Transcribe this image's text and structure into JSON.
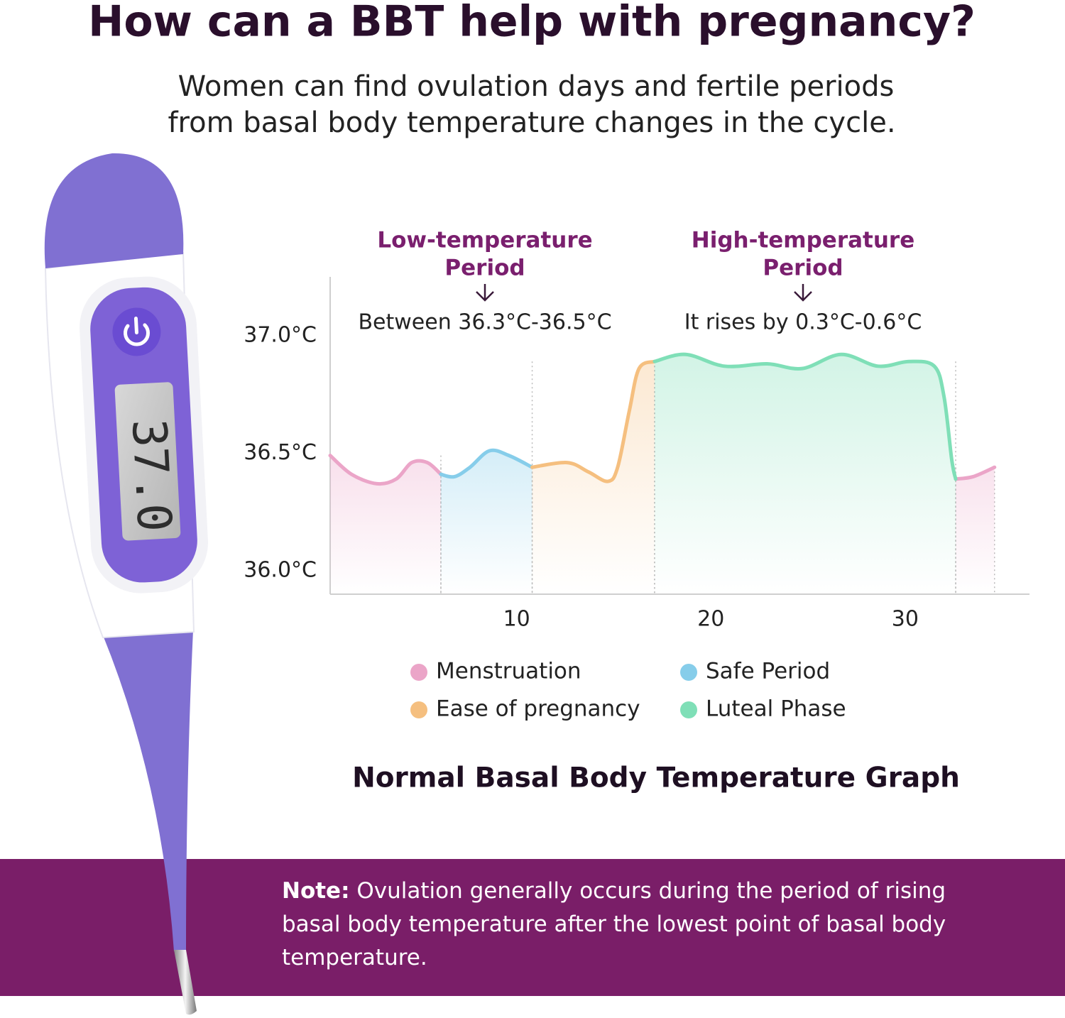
{
  "header": {
    "title": "How can a BBT help with pregnancy?",
    "subtitle_lines": [
      "Women can find ovulation days and fertile periods",
      "from basal body temperature changes in the cycle."
    ]
  },
  "thermometer": {
    "display": "37.0"
  },
  "chart_data": {
    "type": "line",
    "title": "Normal Basal Body Temperature Graph",
    "annotations": [
      {
        "title_lines": [
          "Low-temperature",
          "Period"
        ],
        "text": "Between 36.3°C-36.5°C"
      },
      {
        "title_lines": [
          "High-temperature",
          "Period"
        ],
        "text": "It rises by 0.3°C-0.6°C"
      }
    ],
    "xlim": [
      0.4,
      36.4
    ],
    "xticks": [
      10,
      20,
      30
    ],
    "ylim": [
      35.9,
      37.25
    ],
    "yticks": [
      {
        "value": 36.0,
        "label": "36.0°C"
      },
      {
        "value": 36.5,
        "label": "36.5°C"
      },
      {
        "value": 37.0,
        "label": "37.0°C"
      }
    ],
    "series": [
      {
        "name": "Menstruation",
        "color": "#eba5c8",
        "x": [
          0.4,
          1.5,
          2.8,
          3.8,
          4.6,
          5.4,
          6.1,
          null,
          32.6,
          33.5,
          34.6
        ],
        "values": [
          36.49,
          36.41,
          36.37,
          36.39,
          36.46,
          36.46,
          36.41,
          null,
          36.39,
          36.4,
          36.44
        ]
      },
      {
        "name": "Safe Period",
        "color": "#86cdea",
        "x": [
          6.1,
          6.8,
          7.6,
          8.6,
          9.6,
          10.8
        ],
        "values": [
          36.41,
          36.4,
          36.44,
          36.51,
          36.49,
          36.44
        ]
      },
      {
        "name": "Ease of pregnancy",
        "color": "#f5bf7f",
        "x": [
          10.8,
          12.6,
          13.7,
          14.7,
          15.2,
          15.8,
          16.3,
          17.1
        ],
        "values": [
          36.44,
          36.46,
          36.42,
          36.38,
          36.44,
          36.68,
          36.86,
          36.89
        ]
      },
      {
        "name": "Luteal Phase",
        "color": "#7fdfb7",
        "x": [
          17.1,
          18.7,
          20.7,
          22.9,
          24.7,
          26.7,
          28.6,
          30.2,
          31.5,
          32.0,
          32.4,
          32.6
        ],
        "values": [
          36.89,
          36.92,
          36.87,
          36.88,
          36.86,
          36.92,
          36.87,
          36.89,
          36.87,
          36.74,
          36.47,
          36.39
        ]
      }
    ]
  },
  "note": {
    "label": "Note:",
    "text": "Ovulation generally occurs during the period of rising basal body temperature after the lowest point of basal body temperature."
  }
}
